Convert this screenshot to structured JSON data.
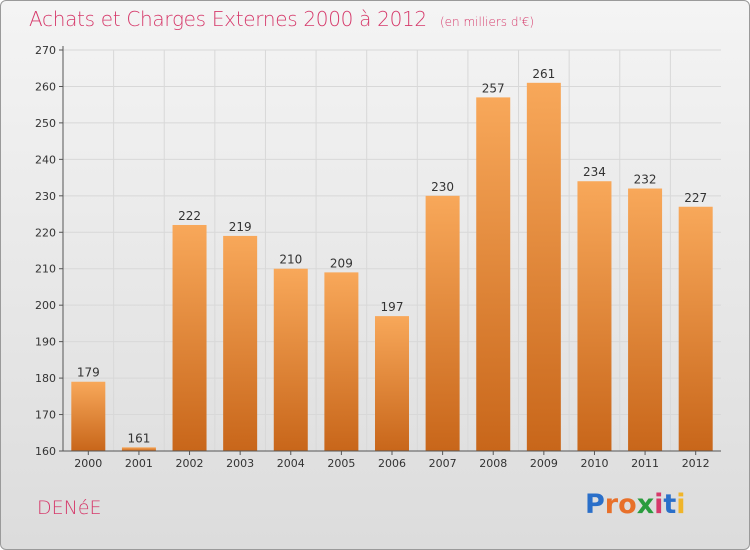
{
  "title": "Achats et Charges Externes 2000 à 2012",
  "unit": "(en milliers d'€)",
  "commune": "DENéE",
  "logo": {
    "text": "Proxiti",
    "colors": [
      "#2a6fc9",
      "#e8702a",
      "#e8702a",
      "#2a9c3e",
      "#d63a6b",
      "#2a6fc9",
      "#f0b52a"
    ]
  },
  "colors": {
    "bar_top": "#f8a85a",
    "bar_bottom": "#c8661a",
    "title": "#d63a6b",
    "grid": "#d8d8d8",
    "axis": "#555555"
  },
  "chart_data": {
    "type": "bar",
    "categories": [
      "2000",
      "2001",
      "2002",
      "2003",
      "2004",
      "2005",
      "2006",
      "2007",
      "2008",
      "2009",
      "2010",
      "2011",
      "2012"
    ],
    "values": [
      179,
      161,
      222,
      219,
      210,
      209,
      197,
      230,
      257,
      261,
      234,
      232,
      227
    ],
    "yticks": [
      160,
      170,
      180,
      190,
      200,
      210,
      220,
      230,
      240,
      250,
      260,
      270
    ],
    "ylim": [
      160,
      270
    ],
    "grid": true,
    "xlabel": "",
    "ylabel": ""
  }
}
